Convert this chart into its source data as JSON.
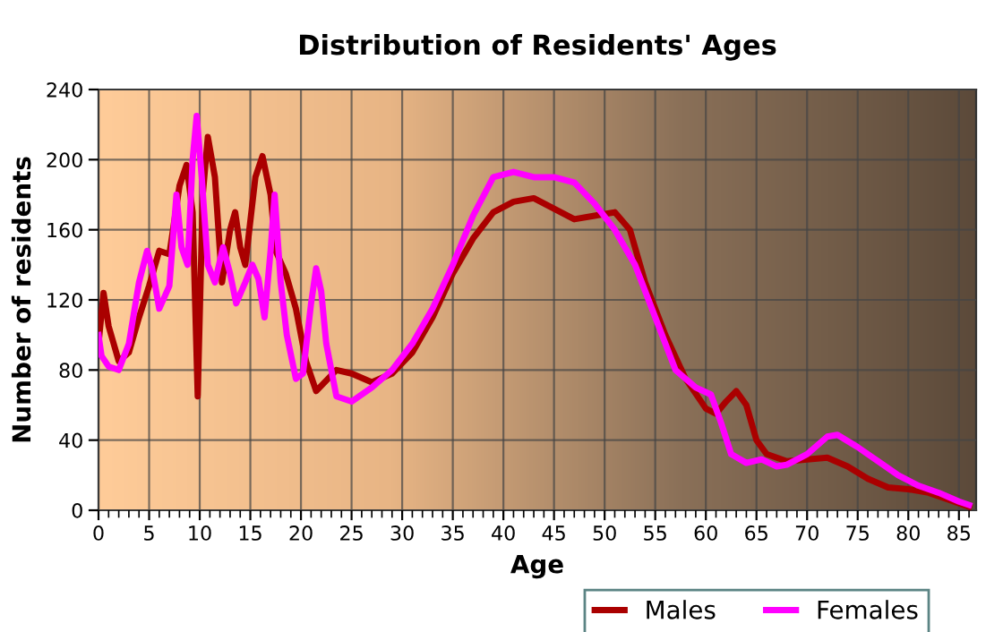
{
  "chart_data": {
    "type": "line",
    "title": "Distribution of Residents' Ages",
    "xlabel": "Age",
    "ylabel": "Number of residents",
    "xlim": [
      0,
      86.7
    ],
    "xticks": [
      0,
      5,
      10,
      15,
      20,
      25,
      30,
      35,
      40,
      45,
      50,
      55,
      60,
      65,
      70,
      75,
      80,
      85
    ],
    "ylim": [
      0,
      240
    ],
    "yticks": [
      0,
      40,
      80,
      120,
      160,
      200,
      240
    ],
    "grid": true,
    "legend": "bottom",
    "marker": "none",
    "line_style": "solid",
    "series": [
      {
        "name": "Males",
        "color": "#aa0000",
        "x": [
          0,
          0.5,
          1,
          2,
          3,
          4,
          5,
          6,
          7,
          8,
          8.7,
          9.3,
          9.8,
          10.3,
          10.8,
          11.5,
          12.2,
          13,
          13.5,
          14,
          14.5,
          15.5,
          16.2,
          17,
          17.5,
          18.5,
          19.5,
          20.5,
          21.5,
          23.5,
          25,
          27,
          29,
          31,
          33,
          35,
          37,
          39,
          41,
          43,
          45,
          47,
          49,
          51,
          52.5,
          54,
          56,
          58,
          60,
          61,
          62,
          63,
          64,
          65,
          66,
          68,
          70,
          72,
          74,
          76,
          78,
          80,
          82,
          84,
          86
        ],
        "values": [
          95,
          124,
          105,
          85,
          90,
          110,
          128,
          148,
          146,
          185,
          197,
          170,
          65,
          180,
          213,
          190,
          130,
          160,
          170,
          150,
          140,
          190,
          202,
          180,
          148,
          135,
          115,
          85,
          68,
          80,
          78,
          73,
          78,
          90,
          110,
          135,
          155,
          170,
          176,
          178,
          172,
          166,
          168,
          170,
          160,
          130,
          100,
          75,
          58,
          55,
          62,
          68,
          60,
          40,
          32,
          28,
          29,
          30,
          25,
          18,
          13,
          12,
          10,
          6,
          2
        ]
      },
      {
        "name": "Females",
        "color": "#ff00ff",
        "x": [
          0,
          0.3,
          1,
          2,
          3,
          4,
          4.8,
          5.3,
          6,
          7,
          7.7,
          8.2,
          8.8,
          9.3,
          9.7,
          10.2,
          10.8,
          11.5,
          12.3,
          13,
          13.6,
          14.5,
          15.2,
          15.8,
          16.4,
          17,
          17.4,
          18,
          18.6,
          19.5,
          20.2,
          21,
          21.5,
          22,
          22.5,
          23.5,
          25,
          27,
          29,
          31,
          33,
          35,
          37,
          39,
          41,
          43,
          45,
          47,
          49,
          51,
          53,
          55,
          57,
          59,
          60.5,
          61.5,
          62.5,
          64,
          65.5,
          67,
          68,
          70,
          72,
          73,
          75,
          77,
          79,
          81,
          83,
          85,
          86
        ],
        "values": [
          100,
          88,
          82,
          80,
          95,
          130,
          148,
          138,
          115,
          128,
          180,
          150,
          140,
          200,
          225,
          190,
          140,
          130,
          150,
          135,
          118,
          130,
          140,
          132,
          110,
          148,
          180,
          130,
          100,
          75,
          78,
          118,
          138,
          125,
          95,
          65,
          62,
          70,
          80,
          95,
          115,
          140,
          168,
          190,
          193,
          190,
          190,
          187,
          175,
          160,
          140,
          110,
          80,
          70,
          66,
          50,
          32,
          27,
          29,
          25,
          26,
          32,
          42,
          43,
          36,
          28,
          20,
          14,
          10,
          5,
          3
        ]
      }
    ]
  }
}
